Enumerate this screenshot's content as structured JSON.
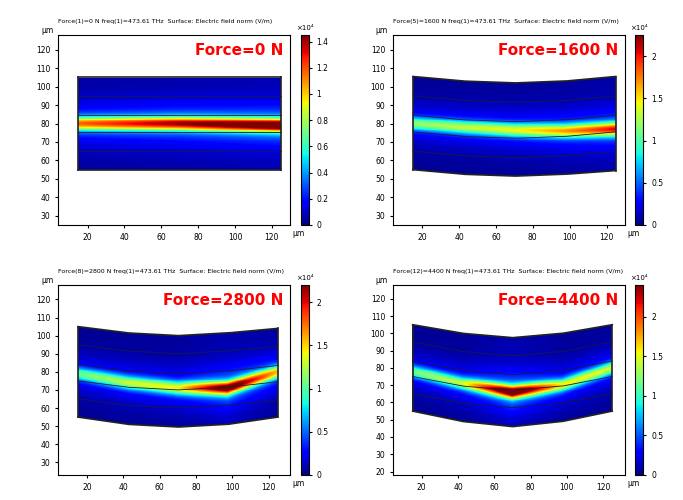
{
  "chart_data": [
    {
      "type": "heatmap",
      "title": "Force(1)=0 N freq(1)=473.61 THz  Surface: Electric field norm (V/m)",
      "annotation": "Force=0 N",
      "xlabel": "μm",
      "ylabel": "μm",
      "xlim": [
        4,
        130
      ],
      "ylim": [
        25,
        128
      ],
      "xticks": [
        20,
        40,
        60,
        80,
        100,
        120
      ],
      "yticks": [
        30,
        40,
        50,
        60,
        70,
        80,
        90,
        100,
        110,
        120
      ],
      "colorbar": {
        "lim": [
          0,
          1.45
        ],
        "ticks": [
          0,
          0.2,
          0.4,
          0.6,
          0.8,
          1,
          1.2,
          1.4
        ],
        "multiplier": "×10⁴"
      },
      "x": [
        15,
        42.5,
        70,
        97.5,
        125
      ],
      "top": [
        105,
        105,
        105,
        105,
        105
      ],
      "bottom": [
        55,
        55,
        55,
        55,
        55
      ],
      "layers": [
        [
          95,
          95,
          95,
          95,
          95
        ],
        [
          84.5,
          84.5,
          84.5,
          84.5,
          84.5
        ],
        [
          75.5,
          75.5,
          75.5,
          75.5,
          75.5
        ],
        [
          65,
          65,
          65,
          65,
          65
        ]
      ],
      "beam_center": [
        80,
        80,
        80,
        79.5,
        79
      ],
      "beam_peak": [
        0.9,
        1.0,
        1.1,
        1.2,
        1.3
      ]
    },
    {
      "type": "heatmap",
      "title": "Force(5)=1600 N freq(1)=473.61 THz  Surface: Electric field norm (V/m)",
      "annotation": "Force=1600 N",
      "xlabel": "μm",
      "ylabel": "μm",
      "xlim": [
        4,
        130
      ],
      "ylim": [
        25,
        128
      ],
      "xticks": [
        20,
        40,
        60,
        80,
        100,
        120
      ],
      "yticks": [
        30,
        40,
        50,
        60,
        70,
        80,
        90,
        100,
        110,
        120
      ],
      "colorbar": {
        "lim": [
          0,
          2.25
        ],
        "ticks": [
          0,
          0.5,
          1,
          1.5,
          2
        ],
        "multiplier": "×10⁴"
      },
      "x": [
        15,
        42.5,
        70,
        97.5,
        125
      ],
      "top": [
        105.5,
        103,
        102,
        103,
        105.5
      ],
      "bottom": [
        55,
        52.5,
        51.5,
        52.5,
        54.5
      ],
      "layers": [
        [
          95,
          92.5,
          91.5,
          92.5,
          95
        ],
        [
          84.5,
          82,
          81,
          82,
          84.5
        ],
        [
          75.5,
          73,
          72,
          73,
          75.5
        ],
        [
          65,
          62.5,
          61.5,
          62.5,
          65
        ]
      ],
      "beam_center": [
        80,
        78,
        76.5,
        76,
        77
      ],
      "beam_peak": [
        0.9,
        1.0,
        1.1,
        1.3,
        1.6
      ]
    },
    {
      "type": "heatmap",
      "title": "Force(8)=2800 N freq(1)=473.61 THz  Surface: Electric field norm (V/m)",
      "annotation": "Force=2800 N",
      "xlabel": "μm",
      "ylabel": "μm",
      "xlim": [
        4,
        132
      ],
      "ylim": [
        23,
        128
      ],
      "xticks": [
        20,
        40,
        60,
        80,
        100,
        120
      ],
      "yticks": [
        30,
        40,
        50,
        60,
        70,
        80,
        90,
        100,
        110,
        120
      ],
      "colorbar": {
        "lim": [
          0,
          2.2
        ],
        "ticks": [
          0,
          0.5,
          1,
          1.5,
          2
        ],
        "multiplier": "×10⁴"
      },
      "x": [
        15,
        42.5,
        70,
        97.5,
        125
      ],
      "top": [
        105,
        101.5,
        100,
        101.5,
        104
      ],
      "bottom": [
        55,
        51,
        49.5,
        51,
        55
      ],
      "layers": [
        [
          95,
          91.5,
          90,
          91.5,
          94
        ],
        [
          84,
          80.5,
          79,
          80.5,
          83.5
        ],
        [
          75,
          71.5,
          70,
          71.5,
          74.5
        ],
        [
          65,
          61.5,
          60,
          61.5,
          64.5
        ]
      ],
      "beam_center": [
        79,
        74,
        71,
        71,
        80
      ],
      "beam_peak": [
        0.8,
        1.0,
        1.1,
        1.9,
        1.2
      ]
    },
    {
      "type": "heatmap",
      "title": "Force(12)=4400 N freq(1)=473.61 THz  Surface: Electric field norm (V/m)",
      "annotation": "Force=4400 N",
      "xlabel": "μm",
      "ylabel": "μm",
      "xlim": [
        4,
        132
      ],
      "ylim": [
        18,
        128
      ],
      "xticks": [
        20,
        40,
        60,
        80,
        100,
        120
      ],
      "yticks": [
        20,
        30,
        40,
        50,
        60,
        70,
        80,
        90,
        100,
        110,
        120
      ],
      "colorbar": {
        "lim": [
          0,
          2.4
        ],
        "ticks": [
          0,
          0.5,
          1,
          1.5,
          2
        ],
        "multiplier": "×10⁴"
      },
      "x": [
        15,
        42.5,
        70,
        97.5,
        125
      ],
      "top": [
        105,
        100,
        97.5,
        100,
        105
      ],
      "bottom": [
        55,
        49,
        46,
        49,
        55
      ],
      "layers": [
        [
          95,
          89.5,
          87,
          89.5,
          95
        ],
        [
          84,
          78.5,
          76,
          78.5,
          84
        ],
        [
          75,
          69.5,
          67,
          69.5,
          75
        ],
        [
          65,
          59.5,
          57,
          59.5,
          65
        ]
      ],
      "beam_center": [
        78,
        71,
        66,
        70,
        80
      ],
      "beam_peak": [
        0.9,
        1.1,
        2.2,
        1.2,
        1.1
      ]
    }
  ]
}
